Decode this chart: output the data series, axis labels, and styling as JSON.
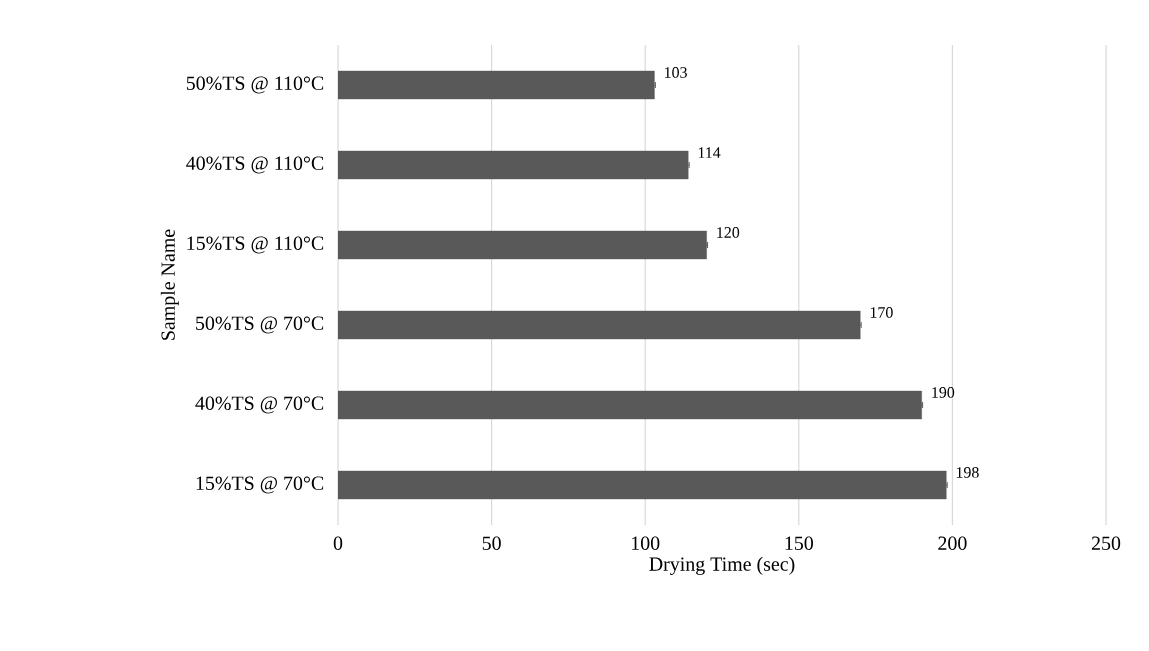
{
  "chart_data": {
    "type": "bar",
    "orientation": "horizontal",
    "xlabel": "Drying Time (sec)",
    "ylabel": "Sample Name",
    "categories": [
      "50%TS @ 110°C",
      "40%TS @ 110°C",
      "15%TS @ 110°C",
      "50%TS @ 70°C",
      "40%TS @ 70°C",
      "15%TS @ 70°C"
    ],
    "values": [
      103,
      114,
      120,
      170,
      190,
      198
    ],
    "errors": [
      0.3,
      0.3,
      0.3,
      0.3,
      0.3,
      0.3
    ],
    "color": "#595959",
    "data_labels": true,
    "xlim": [
      0,
      250
    ],
    "xticks": [
      0,
      50,
      100,
      150,
      200,
      250
    ],
    "grid": "x"
  }
}
